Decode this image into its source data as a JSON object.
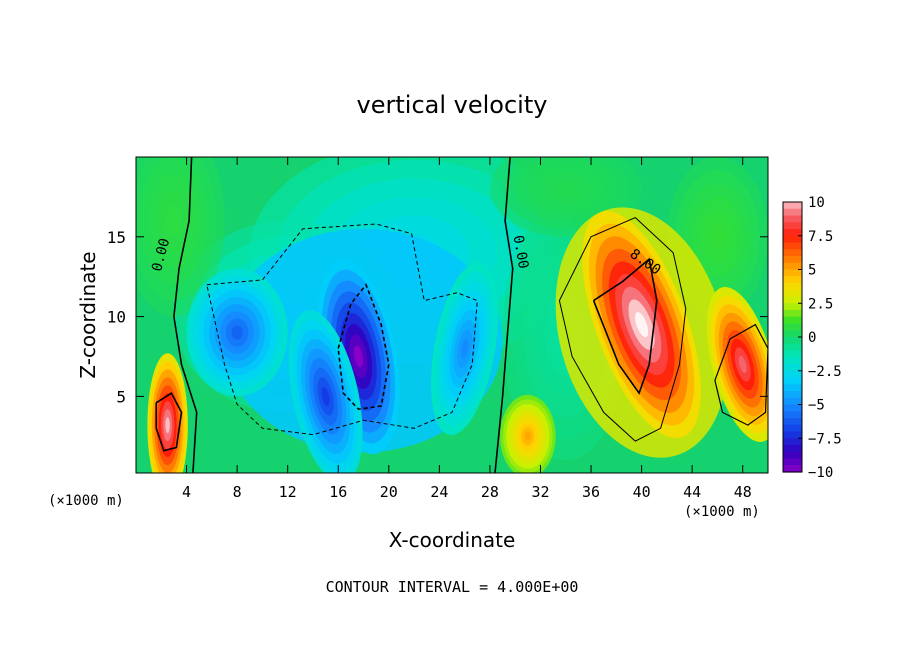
{
  "chart_data": {
    "type": "heatmap",
    "title": "vertical velocity",
    "xlabel": "X-coordinate",
    "ylabel": "Z-coordinate",
    "x_unit_left": "(×1000 m)",
    "x_unit_right": "(×1000 m)",
    "footer": "CONTOUR INTERVAL = 4.000E+00",
    "xlim": [
      0,
      50
    ],
    "ylim": [
      0.2,
      20
    ],
    "x_ticks": [
      4,
      8,
      12,
      16,
      20,
      24,
      28,
      32,
      36,
      40,
      44,
      48
    ],
    "x_tick_labels": [
      "4",
      "8",
      "12",
      "16",
      "20",
      "24",
      "28",
      "32",
      "36",
      "40",
      "44",
      "48"
    ],
    "y_ticks": [
      5,
      10,
      15
    ],
    "y_tick_labels": [
      "5",
      "10",
      "15"
    ],
    "colorbar": {
      "range": [
        -10,
        10
      ],
      "ticks": [
        10,
        7.5,
        5,
        2.5,
        0,
        -2.5,
        -5,
        -7.5,
        -10
      ],
      "tick_labels": [
        "10",
        "7.5",
        "5",
        "2.5",
        "0",
        "−2.5",
        "−5",
        "−7.5",
        "−10"
      ]
    },
    "contour_labels": [
      {
        "text": "0.00",
        "x": 2.3,
        "z": 13.8,
        "angle": -75
      },
      {
        "text": "0.00",
        "x": 30.1,
        "z": 14.0,
        "angle": 80
      },
      {
        "text": "8.00",
        "x": 40.1,
        "z": 13.2,
        "angle": 35
      }
    ],
    "features": [
      {
        "kind": "updraft",
        "x": 40,
        "z": 9.5,
        "peak": 11
      },
      {
        "kind": "updraft",
        "x": 48,
        "z": 7,
        "peak": 9
      },
      {
        "kind": "updraft",
        "x": 2.5,
        "z": 3.2,
        "peak": 10
      },
      {
        "kind": "updraft",
        "x": 31,
        "z": 2.5,
        "peak": 5
      },
      {
        "kind": "downdraft",
        "x": 17.6,
        "z": 7.5,
        "peak": -10
      },
      {
        "kind": "downdraft",
        "x": 15,
        "z": 5,
        "peak": -7
      },
      {
        "kind": "downdraft",
        "x": 8,
        "z": 9,
        "peak": -6
      },
      {
        "kind": "downdraft",
        "x": 26,
        "z": 8,
        "peak": -5
      }
    ]
  }
}
